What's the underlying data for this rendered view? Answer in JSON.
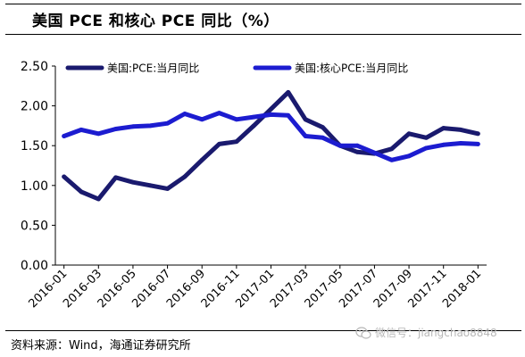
{
  "title": "美国 PCE 和核心 PCE 同比（%）",
  "source": "资料来源：Wind，海通证券研究所",
  "watermark": {
    "text": "微信号：jiangchao8848",
    "icon": "wechat-icon"
  },
  "chart_data": {
    "type": "line",
    "title": "美国 PCE 和核心 PCE 同比（%）",
    "xlabel": "",
    "ylabel": "",
    "ylim": [
      0,
      2.5
    ],
    "yticks": [
      "0.00",
      "0.50",
      "1.00",
      "1.50",
      "2.00",
      "2.50"
    ],
    "x": [
      "2016-01",
      "2016-02",
      "2016-03",
      "2016-04",
      "2016-05",
      "2016-06",
      "2016-07",
      "2016-08",
      "2016-09",
      "2016-10",
      "2016-11",
      "2016-12",
      "2017-01",
      "2017-02",
      "2017-03",
      "2017-04",
      "2017-05",
      "2017-06",
      "2017-07",
      "2017-08",
      "2017-09",
      "2017-10",
      "2017-11",
      "2017-12",
      "2018-01"
    ],
    "xtick_labels": [
      "2016-01",
      "2016-03",
      "2016-05",
      "2016-07",
      "2016-09",
      "2016-11",
      "2017-01",
      "2017-03",
      "2017-05",
      "2017-07",
      "2017-09",
      "2017-11",
      "2018-01"
    ],
    "grid": false,
    "legend_position": "top",
    "series": [
      {
        "name": "美国:PCE:当月同比",
        "color": "#1a1a6e",
        "values": [
          1.11,
          0.92,
          0.83,
          1.1,
          1.04,
          1.0,
          0.96,
          1.11,
          1.32,
          1.52,
          1.55,
          1.75,
          1.96,
          2.17,
          1.83,
          1.73,
          1.5,
          1.42,
          1.4,
          1.46,
          1.65,
          1.6,
          1.72,
          1.7,
          1.65
        ]
      },
      {
        "name": "美国:核心PCE:当月同比",
        "color": "#1c1cd0",
        "values": [
          1.62,
          1.7,
          1.65,
          1.71,
          1.74,
          1.75,
          1.78,
          1.9,
          1.83,
          1.91,
          1.83,
          1.86,
          1.89,
          1.88,
          1.62,
          1.6,
          1.5,
          1.5,
          1.41,
          1.32,
          1.37,
          1.47,
          1.51,
          1.53,
          1.52
        ]
      }
    ]
  }
}
